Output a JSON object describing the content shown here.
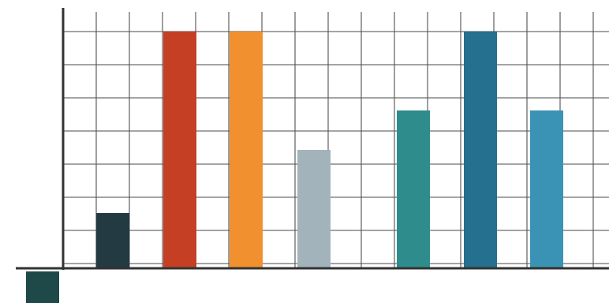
{
  "chart_data": {
    "type": "bar",
    "title": "",
    "xlabel": "",
    "ylabel": "",
    "ylim": [
      0,
      6
    ],
    "grid": true,
    "legend": "none",
    "values": [
      1.4,
      6,
      6,
      3,
      4,
      6,
      4
    ],
    "colors": [
      "#233a42",
      "#c53f25",
      "#f1902f",
      "#a3b3bb",
      "#2f8c8d",
      "#256f8f",
      "#3a93b4"
    ]
  },
  "corner_mark": {
    "color": "#1f4848"
  },
  "axis_color": "#333333",
  "grid_color": "#555555"
}
